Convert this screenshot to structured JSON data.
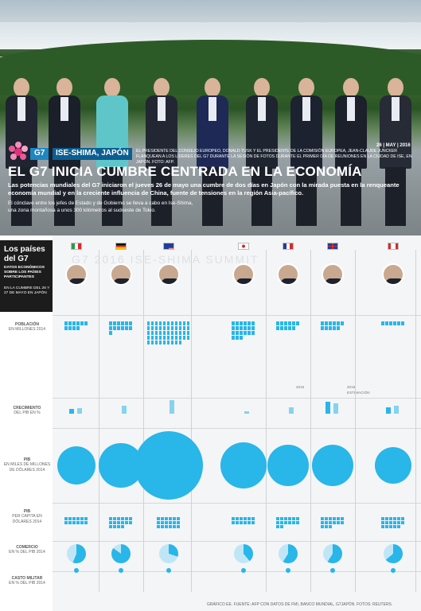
{
  "header": {
    "logo_icon": "g7-logo-icon",
    "tag_g7": "G7",
    "tag_place": "ISE-SHIMA, JAPÓN",
    "date": "26 | MAY | 2016",
    "caption": "EL PRESIDENTE DEL CONSEJO EUROPEO, DONALD TUSK Y EL PRESIDENTE DE LA COMISIÓN EUROPEA, JEAN-CLAUDE JUNCKER FLANQUEAN A LOS LÍDERES DEL G7 DURANTE LA SESIÓN DE FOTOS DURANTE EL PRIMER DÍA DE REUNIONES EN LA CIUDAD DE ISE, EN JAPÓN. FOTO: AFP.",
    "headline": "EL G7 INICIA CUMBRE CENTRADA EN LA ECONOMÍA",
    "subhead": "Las potencias mundiales del G7 iniciaron el jueves 26 de mayo una cumbre de dos días en Japón con la mirada puesta en la renqueante economía mundial y en la creciente influencia de China, fuente de tensiones en la región Asia-pacífico.",
    "note": "El cónclave entre los jefes de Estado y de Gobierno se lleva a cabo en Ise-Shima, una zona montañosa a unos 300 kilómetros al sudoeste de Tokio."
  },
  "sidebar": {
    "title": "Los países del G7",
    "sub": "DATOS ECONÓMICOS SOBRE LOS PAÍSES PARTICIPANTES",
    "sub2": "EN LA CUMBRE DEL 26 Y 27 DE MAYO EN JAPÓN",
    "row_pop": "POBLACIÓN",
    "row_pop_unit": "EN MILLONES 2014",
    "row_gdp_growth": "CRECIMIENTO",
    "row_gdp_growth_unit": "DEL PIB EN %",
    "row_gdp": "PIB",
    "row_gdp_unit": "EN MILES DE MILLONES DE DÓLARES 2014",
    "row_pc": "PIB",
    "row_pc_unit": "PER CAPITA EN DÓLARES 2014",
    "row_trade": "COMERCIO",
    "row_trade_unit": "EN % DEL PIB 2014",
    "row_mil": "CASTO MILITAR",
    "row_mil_unit": "EN % DEL PIB 2014"
  },
  "legend": {
    "y2015": "2015",
    "y2016": "2016",
    "estimate": "ESTIMACIÓN"
  },
  "watermark": "G7 2016 ISE-SHIMA SUMMIT",
  "footer": "GRÁFICO EE. FUENTE: AFP CON DATOS DE FMI, BANCO MUNDIAL, G7JAPÓN. FOTOS: REUTERS.",
  "colors": {
    "accent": "#29b6e8",
    "dark": "#1c1c1c"
  },
  "chart_data": {
    "type": "table",
    "countries": [
      {
        "name": "ITALIA",
        "role": "PRIMER MINISTRO",
        "leader": "MATTEO RENZI",
        "population": "60.79",
        "growth_2015": "0.8",
        "growth_2016": "1.0",
        "gdp": "2,140",
        "gdp_pc": "35,223",
        "trade": "56",
        "military": "1.5",
        "flag": "italy"
      },
      {
        "name": "ALEMANIA",
        "role": "CANCILLER",
        "leader": "ANGELA MERKEL",
        "population": "80.97",
        "growth_2015": "",
        "growth_2016": "1.5",
        "gdp": "3,870",
        "gdp_pc": "47,774",
        "trade": "85",
        "military": "1.2",
        "flag": "germany"
      },
      {
        "name": "ESTADOS UNIDOS",
        "role": "PRESIDENTE",
        "leader": "BARACK OBAMA",
        "population": "318.9",
        "growth_2015": "",
        "growth_2016": "2.4",
        "gdp": "17,420",
        "gdp_pc": "54,629",
        "trade": "30",
        "military": "3.5",
        "flag": "usa"
      },
      {
        "name": "JAPÓN",
        "role": "PRIMER MINISTRO",
        "leader": "SHINZO ABE",
        "population": "127.1",
        "growth_2015": "",
        "growth_2016": "0.5",
        "gdp": "4,600",
        "gdp_pc": "36,194",
        "trade": "39",
        "military": "1.0",
        "flag": "japan"
      },
      {
        "name": "FRANCIA",
        "role": "PRESIDENTE",
        "leader": "FRANÇOIS HOLLANDE",
        "population": "66.22",
        "growth_2015": "",
        "growth_2016": "1.1",
        "gdp": "2,830",
        "gdp_pc": "42,726",
        "trade": "59",
        "military": "2.2",
        "flag": "france"
      },
      {
        "name": "REINO UNIDO",
        "role": "PRIMER MINISTRO",
        "leader": "DAVID CAMERON",
        "population": "64.6",
        "growth_2015": "2.2",
        "growth_2016": "1.9",
        "gdp": "2,990",
        "gdp_pc": "46,297",
        "trade": "59",
        "military": "2.0",
        "flag": "uk"
      },
      {
        "name": "CANADÁ",
        "role": "PRIMER MINISTRO",
        "leader": "JUSTIN TRUDEAU",
        "population": "35.54",
        "growth_2015": "1.2",
        "growth_2016": "1.5",
        "gdp": "1,790",
        "gdp_pc": "50,230",
        "trade": "64",
        "military": "1.0",
        "flag": "canada"
      }
    ],
    "gdp_values": [
      2140,
      3870,
      17420,
      4600,
      2830,
      2990,
      1790
    ],
    "population_values": [
      60.79,
      80.97,
      318.9,
      127.1,
      66.22,
      64.6,
      35.54
    ],
    "trade_values": [
      56,
      85,
      30,
      39,
      59,
      59,
      64
    ]
  }
}
